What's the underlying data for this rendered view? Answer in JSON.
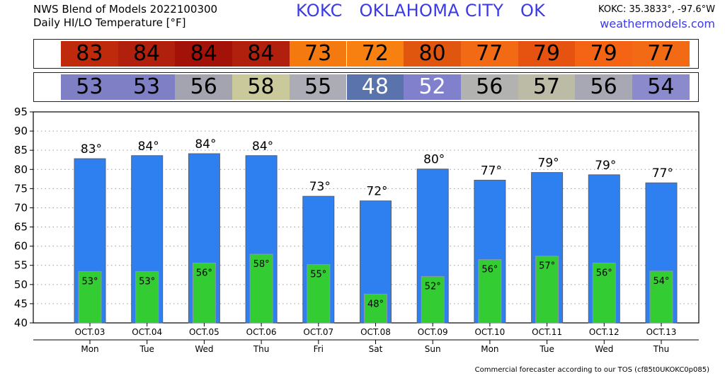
{
  "header": {
    "model_line": "NWS Blend of Models 2022100300",
    "subtitle": "Daily HI/LO Temperature [°F]",
    "station": "KOKC   OKLAHOMA CITY   OK",
    "coords": "KOKC: 35.3833°, -97.6°W",
    "site": "weathermodels.com"
  },
  "hi_strip": {
    "values": [
      "83",
      "84",
      "84",
      "84",
      "73",
      "72",
      "80",
      "77",
      "79",
      "79",
      "77"
    ],
    "colors": [
      "#bf2a0c",
      "#b0200c",
      "#a21208",
      "#b0200c",
      "#f47a10",
      "#f88010",
      "#e0560f",
      "#f36a14",
      "#e6520f",
      "#f46414",
      "#f36a14"
    ]
  },
  "lo_strip": {
    "values": [
      "53",
      "53",
      "56",
      "58",
      "55",
      "48",
      "52",
      "56",
      "57",
      "56",
      "54"
    ],
    "colors": [
      "#7f7fc6",
      "#7f7fc6",
      "#a4a4b0",
      "#c9c99c",
      "#acacb7",
      "#5a73ad",
      "#8080cc",
      "#b2b2b0",
      "#bcbca6",
      "#a8a8b4",
      "#8a8acd"
    ]
  },
  "chart_data": {
    "type": "bar",
    "categories": [
      "OCT.03",
      "OCT.04",
      "OCT.05",
      "OCT.06",
      "OCT.07",
      "OCT.08",
      "OCT.09",
      "OCT.10",
      "OCT.11",
      "OCT.12",
      "OCT.13"
    ],
    "days": [
      "Mon",
      "Tue",
      "Wed",
      "Thu",
      "Fri",
      "Sat",
      "Sun",
      "Mon",
      "Tue",
      "Wed",
      "Thu"
    ],
    "series": [
      {
        "values": [
          82.8,
          83.6,
          84.1,
          83.6,
          73.0,
          71.8,
          80.1,
          77.2,
          79.2,
          78.6,
          76.5
        ],
        "labels": [
          "83°",
          "84°",
          "84°",
          "84°",
          "73°",
          "72°",
          "80°",
          "77°",
          "79°",
          "79°",
          "77°"
        ],
        "color": "#2e7ff0"
      },
      {
        "values": [
          53.4,
          53.4,
          55.6,
          57.9,
          55.2,
          47.5,
          52.1,
          56.5,
          57.4,
          55.6,
          53.5
        ],
        "labels": [
          "53°",
          "53°",
          "56°",
          "58°",
          "55°",
          "48°",
          "52°",
          "56°",
          "57°",
          "56°",
          "54°"
        ],
        "color": "#33cc33"
      }
    ],
    "ylim": [
      40,
      95
    ],
    "yticks": [
      "40",
      "45",
      "50",
      "55",
      "60",
      "65",
      "70",
      "75",
      "80",
      "85",
      "90",
      "95"
    ],
    "grid": true
  },
  "footer": {
    "text": "Commercial forecaster according to our TOS (cf85t0UKOKC0p085)"
  }
}
